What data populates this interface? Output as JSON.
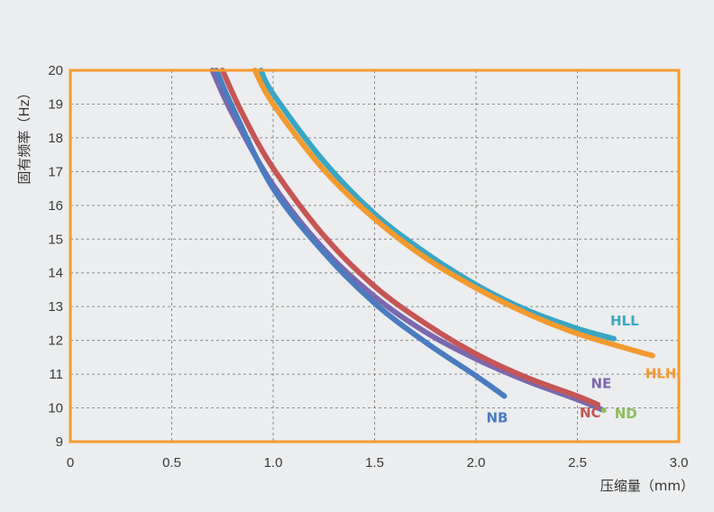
{
  "chart_data": {
    "type": "line",
    "title": "",
    "xlabel": "压缩量（mm）",
    "ylabel": "固有频率（Hz）",
    "xlim": [
      0,
      3.0
    ],
    "ylim": [
      9,
      20
    ],
    "x_ticks": [
      "0",
      "0.5",
      "1.0",
      "1.5",
      "2.0",
      "2.5",
      "3.0"
    ],
    "x_tick_values": [
      0,
      0.5,
      1.0,
      1.5,
      2.0,
      2.5,
      3.0
    ],
    "y_ticks": [
      "9",
      "10",
      "11",
      "12",
      "13",
      "14",
      "15",
      "16",
      "17",
      "18",
      "19",
      "20"
    ],
    "y_tick_values": [
      9,
      10,
      11,
      12,
      13,
      14,
      15,
      16,
      17,
      18,
      19,
      20
    ],
    "grid": true,
    "legend": "labels at line ends",
    "frame_color": "#f39a2e",
    "series": [
      {
        "name": "HLL",
        "color": "#3aa6c4",
        "x": [
          0.94,
          1.0,
          1.25,
          1.5,
          1.75,
          2.0,
          2.25,
          2.5,
          2.68
        ],
        "y": [
          20,
          19.3,
          17.3,
          15.75,
          14.6,
          13.65,
          12.9,
          12.35,
          12.05
        ]
      },
      {
        "name": "HLH",
        "color": "#f39a2e",
        "x": [
          0.91,
          1.0,
          1.25,
          1.5,
          1.75,
          2.0,
          2.25,
          2.5,
          2.75,
          2.87
        ],
        "y": [
          20,
          19.0,
          17.05,
          15.6,
          14.45,
          13.55,
          12.8,
          12.2,
          11.75,
          11.55
        ]
      },
      {
        "name": "NE",
        "color": "#7b68ad",
        "x": [
          0.7,
          0.8,
          1.0,
          1.25,
          1.5,
          1.75,
          2.0,
          2.25,
          2.5,
          2.62
        ],
        "y": [
          20,
          18.7,
          16.6,
          14.7,
          13.3,
          12.25,
          11.45,
          10.8,
          10.25,
          9.95
        ]
      },
      {
        "name": "NC",
        "color": "#c65555",
        "x": [
          0.75,
          0.85,
          1.0,
          1.25,
          1.5,
          1.75,
          2.0,
          2.25,
          2.5,
          2.6
        ],
        "y": [
          20,
          18.7,
          17.1,
          15.1,
          13.6,
          12.5,
          11.6,
          10.9,
          10.35,
          10.1
        ]
      },
      {
        "name": "NB",
        "color": "#4a7cbf",
        "x": [
          0.72,
          0.8,
          1.0,
          1.25,
          1.5,
          1.75,
          2.0,
          2.14
        ],
        "y": [
          20,
          18.9,
          16.5,
          14.6,
          13.1,
          11.95,
          10.95,
          10.35
        ]
      },
      {
        "name": "ND",
        "color": "#8dbd5c",
        "x": [
          2.63
        ],
        "y": [
          9.93
        ]
      }
    ]
  }
}
